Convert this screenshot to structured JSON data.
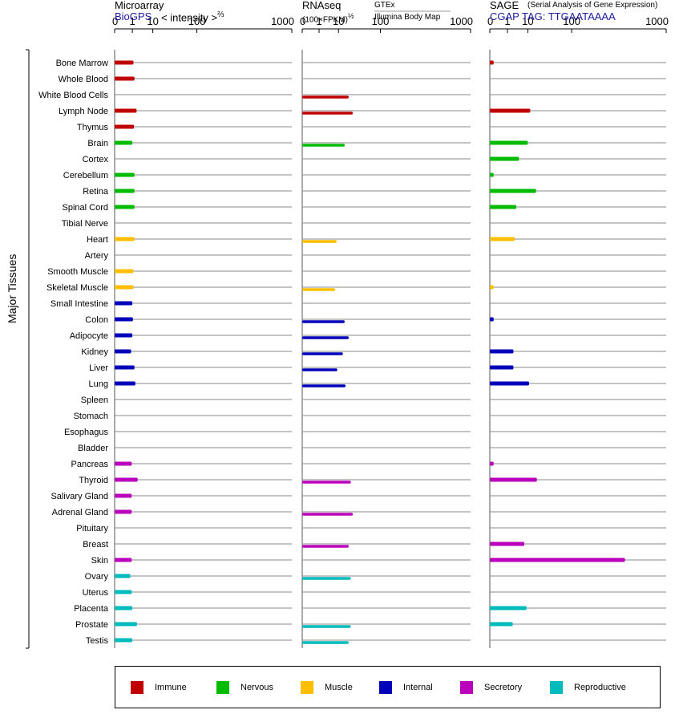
{
  "panels": {
    "microarray": {
      "title": "Microarray",
      "source": "BioGPS",
      "unit": "< intensity >",
      "unit_exp": "⅔"
    },
    "rnaseq": {
      "title": "RNAseq",
      "unit": "(100×FPKM)",
      "unit_exp": "½",
      "source_top": "GTEx",
      "source_bottom": "Illumina Body Map"
    },
    "sage": {
      "title": "SAGE",
      "subtitle": "(Serial Analysis of Gene Expression)",
      "tag": "CGAP TAG: TTGAATAAAA"
    }
  },
  "y_axis_title": "Major Tissues",
  "colors": {
    "Immune": "#c00000",
    "Nervous": "#00bb00",
    "Muscle": "#ffbf00",
    "Internal": "#0000bb",
    "Secretory": "#bb00bb",
    "Reproductive": "#00bbbb"
  },
  "legend": [
    "Immune",
    "Nervous",
    "Muscle",
    "Internal",
    "Secretory",
    "Reproductive"
  ],
  "chart_data": {
    "type": "bar",
    "orientation": "horizontal",
    "x_ticks": [
      "0",
      "1",
      "10",
      "100",
      "1000"
    ],
    "x_scale": "power (compressed log-like, 0 to 1000)",
    "categories": [
      "Bone Marrow",
      "Whole Blood",
      "White Blood Cells",
      "Lymph Node",
      "Thymus",
      "Brain",
      "Cortex",
      "Cerebellum",
      "Retina",
      "Spinal Cord",
      "Tibial Nerve",
      "Heart",
      "Artery",
      "Smooth Muscle",
      "Skeletal Muscle",
      "Small Intestine",
      "Colon",
      "Adipocyte",
      "Kidney",
      "Liver",
      "Lung",
      "Spleen",
      "Stomach",
      "Esophagus",
      "Bladder",
      "Pancreas",
      "Thyroid",
      "Salivary Gland",
      "Adrenal Gland",
      "Pituitary",
      "Breast",
      "Skin",
      "Ovary",
      "Uterus",
      "Placenta",
      "Prostate",
      "Testis"
    ],
    "groups": [
      "Immune",
      "Immune",
      "Immune",
      "Immune",
      "Immune",
      "Nervous",
      "Nervous",
      "Nervous",
      "Nervous",
      "Nervous",
      "Nervous",
      "Muscle",
      "Muscle",
      "Muscle",
      "Muscle",
      "Internal",
      "Internal",
      "Internal",
      "Internal",
      "Internal",
      "Internal",
      "Internal",
      "Internal",
      "Internal",
      "Internal",
      "Secretory",
      "Secretory",
      "Secretory",
      "Secretory",
      "Secretory",
      "Secretory",
      "Secretory",
      "Reproductive",
      "Reproductive",
      "Reproductive",
      "Reproductive",
      "Reproductive"
    ],
    "series": [
      {
        "name": "Microarray",
        "values": [
          1.2,
          1.4,
          null,
          1.9,
          1.3,
          1.0,
          null,
          1.4,
          1.4,
          1.4,
          null,
          1.4,
          null,
          1.2,
          1.2,
          1.0,
          1.1,
          1.0,
          0.8,
          1.4,
          1.6,
          null,
          null,
          null,
          null,
          0.9,
          2.2,
          0.9,
          0.9,
          null,
          null,
          0.9,
          0.7,
          0.9,
          1.0,
          2.0,
          1.0
        ]
      },
      {
        "name": "RNAseq",
        "values": [
          null,
          null,
          21,
          27,
          null,
          null,
          null,
          null,
          null,
          null,
          null,
          null,
          null,
          null,
          null,
          null,
          null,
          null,
          null,
          null,
          null,
          null,
          null,
          null,
          null,
          null,
          null,
          null,
          null,
          null,
          null,
          null,
          null,
          null,
          null,
          null,
          null
        ]
      },
      {
        "name": "SAGE",
        "values": [
          0.01,
          null,
          null,
          12,
          null,
          10,
          4.5,
          0.01,
          18,
          3.4,
          null,
          2.8,
          null,
          null,
          0.01,
          null,
          0.01,
          null,
          2.4,
          2.4,
          11,
          null,
          null,
          null,
          null,
          0.01,
          19,
          null,
          null,
          null,
          7.5,
          450,
          null,
          null,
          9,
          2.2,
          null
        ]
      }
    ],
    "rnaseq_rows": [
      {
        "category": "White Blood Cells",
        "value": 21
      },
      {
        "category": "Lymph Node",
        "value": 27
      },
      {
        "category": "Brain",
        "value": 16
      },
      {
        "category": "Heart",
        "value": 8.5
      },
      {
        "category": "Skeletal Muscle",
        "value": 7.5
      },
      {
        "category": "Colon",
        "value": 16
      },
      {
        "category": "Adipocyte",
        "value": 21
      },
      {
        "category": "Kidney",
        "value": 14
      },
      {
        "category": "Liver",
        "value": 9
      },
      {
        "category": "Lung",
        "value": 17
      },
      {
        "category": "Thyroid",
        "value": 24
      },
      {
        "category": "Adrenal Gland",
        "value": 27
      },
      {
        "category": "Breast",
        "value": 21
      },
      {
        "category": "Ovary",
        "value": 24
      },
      {
        "category": "Prostate",
        "value": 24
      },
      {
        "category": "Testis",
        "value": 21
      }
    ],
    "microarray_rows": [
      {
        "category": "Bone Marrow",
        "value": 1.2
      },
      {
        "category": "Whole Blood",
        "value": 1.4
      },
      {
        "category": "Lymph Node",
        "value": 1.9
      },
      {
        "category": "Thymus",
        "value": 1.3
      },
      {
        "category": "Brain",
        "value": 1.0
      },
      {
        "category": "Cerebellum",
        "value": 1.4
      },
      {
        "category": "Retina",
        "value": 1.4
      },
      {
        "category": "Spinal Cord",
        "value": 1.4
      },
      {
        "category": "Heart",
        "value": 1.4
      },
      {
        "category": "Smooth Muscle",
        "value": 1.2
      },
      {
        "category": "Skeletal Muscle",
        "value": 1.2
      },
      {
        "category": "Small Intestine",
        "value": 1.0
      },
      {
        "category": "Colon",
        "value": 1.1
      },
      {
        "category": "Adipocyte",
        "value": 1.0
      },
      {
        "category": "Kidney",
        "value": 0.8
      },
      {
        "category": "Liver",
        "value": 1.4
      },
      {
        "category": "Lung",
        "value": 1.6
      },
      {
        "category": "Pancreas",
        "value": 0.9
      },
      {
        "category": "Thyroid",
        "value": 2.2
      },
      {
        "category": "Salivary Gland",
        "value": 0.9
      },
      {
        "category": "Adrenal Gland",
        "value": 0.9
      },
      {
        "category": "Skin",
        "value": 0.9
      },
      {
        "category": "Ovary",
        "value": 0.7
      },
      {
        "category": "Uterus",
        "value": 0.9
      },
      {
        "category": "Placenta",
        "value": 1.0
      },
      {
        "category": "Prostate",
        "value": 2.0
      },
      {
        "category": "Testis",
        "value": 1.0
      }
    ],
    "sage_rows": [
      {
        "category": "Bone Marrow",
        "value": 0.01
      },
      {
        "category": "Lymph Node",
        "value": 12
      },
      {
        "category": "Brain",
        "value": 10
      },
      {
        "category": "Cortex",
        "value": 4.5
      },
      {
        "category": "Cerebellum",
        "value": 0.01
      },
      {
        "category": "Retina",
        "value": 18
      },
      {
        "category": "Spinal Cord",
        "value": 3.4
      },
      {
        "category": "Heart",
        "value": 2.8
      },
      {
        "category": "Skeletal Muscle",
        "value": 0.01
      },
      {
        "category": "Colon",
        "value": 0.01
      },
      {
        "category": "Kidney",
        "value": 2.4
      },
      {
        "category": "Liver",
        "value": 2.4
      },
      {
        "category": "Lung",
        "value": 11
      },
      {
        "category": "Pancreas",
        "value": 0.01
      },
      {
        "category": "Thyroid",
        "value": 19
      },
      {
        "category": "Breast",
        "value": 7.5
      },
      {
        "category": "Skin",
        "value": 450
      },
      {
        "category": "Placenta",
        "value": 9
      },
      {
        "category": "Prostate",
        "value": 2.2
      }
    ]
  }
}
